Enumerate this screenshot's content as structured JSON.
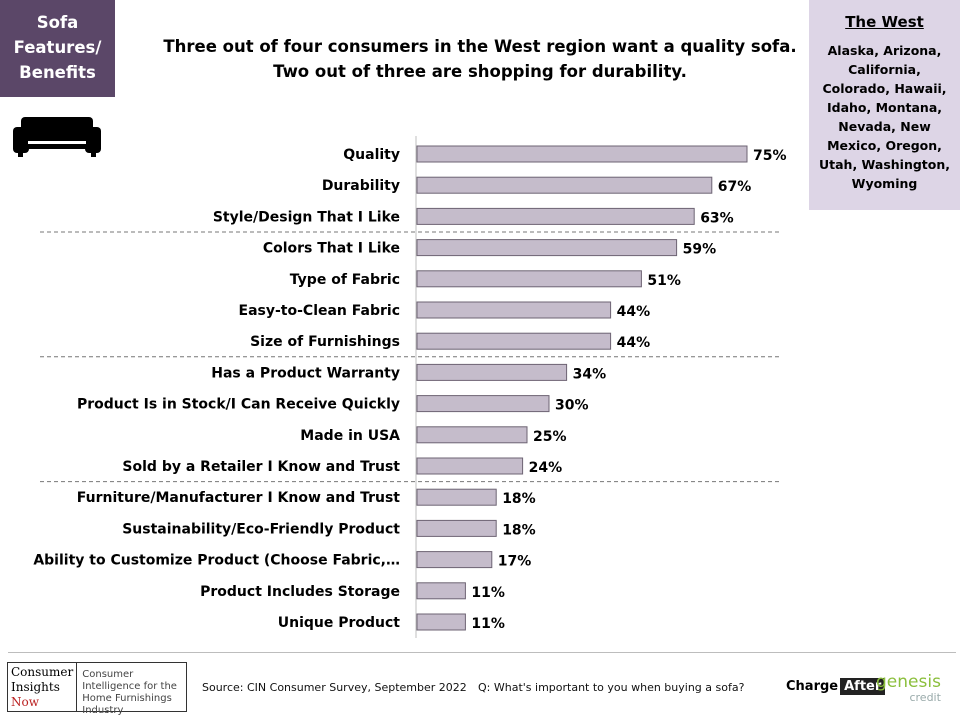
{
  "tag": {
    "lines": [
      "Sofa",
      "Features/",
      "Benefits"
    ]
  },
  "headline": {
    "line1": "Three out of four consumers in the West region want a quality sofa.",
    "line2": "Two out of three are shopping for durability."
  },
  "region": {
    "title": "The West",
    "states": "Alaska, Arizona, California, Colorado, Hawaii, Idaho, Montana, Nevada, New Mexico, Oregon, Utah, Washington, Wyoming"
  },
  "icons": {
    "sofa": "sofa-icon"
  },
  "colors": {
    "bar_fill": "#c5bccb",
    "bar_stroke": "#6d6373",
    "tag_bg": "#5b4768",
    "region_bg": "#ddd5e6"
  },
  "chart_data": {
    "type": "bar",
    "orientation": "horizontal",
    "categories": [
      "Quality",
      "Durability",
      "Style/Design That I Like",
      "Colors That I Like",
      "Type of Fabric",
      "Easy-to-Clean Fabric",
      "Size of Furnishings",
      "Has a Product Warranty",
      "Product Is in Stock/I Can Receive Quickly",
      "Made in USA",
      "Sold by a Retailer I Know and Trust",
      "Furniture/Manufacturer I Know and Trust",
      "Sustainability/Eco-Friendly Product",
      "Ability to Customize Product (Choose Fabric,…",
      "Product Includes Storage",
      "Unique Product"
    ],
    "values": [
      75,
      67,
      63,
      59,
      51,
      44,
      44,
      34,
      30,
      25,
      24,
      18,
      18,
      17,
      11,
      11
    ],
    "data_labels": [
      "75%",
      "67%",
      "63%",
      "59%",
      "51%",
      "44%",
      "44%",
      "34%",
      "30%",
      "25%",
      "24%",
      "18%",
      "18%",
      "17%",
      "11%",
      "11%"
    ],
    "group_separators_after_index": [
      2,
      6,
      10
    ],
    "xlim": [
      0,
      100
    ],
    "grid": false,
    "legend": "none"
  },
  "footer": {
    "logo_name": [
      "Consumer",
      "Insights",
      "Now"
    ],
    "logo_tagline": "Consumer Intelligence for the Home Furnishings Industry",
    "source": "Source: CIN Consumer Survey, September  2022",
    "question": "Q: What's important to you when buying a sofa?",
    "chargeafter": [
      "Charge",
      "After"
    ],
    "genesis": [
      "genesis",
      "credit"
    ]
  }
}
